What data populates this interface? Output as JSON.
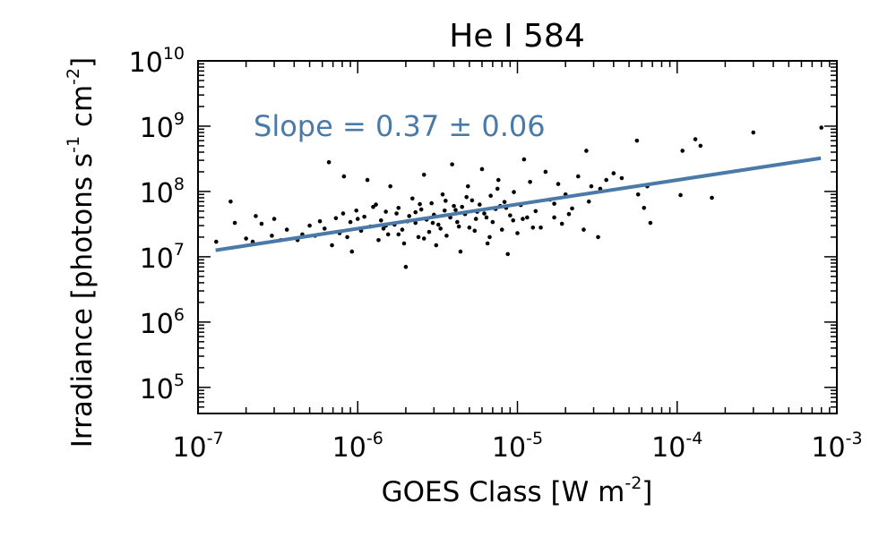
{
  "chart_data": {
    "type": "scatter",
    "title": "He I 584",
    "xlabel": {
      "text": "GOES Class [W m",
      "sup": "-2",
      "tail": "]"
    },
    "ylabel": {
      "parts": [
        {
          "t": "Irradiance [photons s",
          "sup": false
        },
        {
          "t": "-1",
          "sup": true
        },
        {
          "t": " cm",
          "sup": false
        },
        {
          "t": "-2",
          "sup": true
        },
        {
          "t": "]",
          "sup": false
        }
      ]
    },
    "x_scale": "log",
    "y_scale": "log",
    "xlim_exp": [
      -7,
      -3
    ],
    "ylim_exp": [
      4.6,
      10
    ],
    "x_ticks": [
      {
        "base": "10",
        "exp": "-7",
        "value": 1e-07
      },
      {
        "base": "10",
        "exp": "-6",
        "value": 1e-06
      },
      {
        "base": "10",
        "exp": "-5",
        "value": 1e-05
      },
      {
        "base": "10",
        "exp": "-4",
        "value": 0.0001
      },
      {
        "base": "10",
        "exp": "-3",
        "value": 0.001
      }
    ],
    "y_ticks": [
      {
        "base": "10",
        "exp": "5",
        "value": 100000.0
      },
      {
        "base": "10",
        "exp": "6",
        "value": 1000000.0
      },
      {
        "base": "10",
        "exp": "7",
        "value": 10000000.0
      },
      {
        "base": "10",
        "exp": "8",
        "value": 100000000.0
      },
      {
        "base": "10",
        "exp": "9",
        "value": 1000000000.0
      },
      {
        "base": "10",
        "exp": "10",
        "value": 10000000000.0
      }
    ],
    "annotation": "Slope = 0.37 ± 0.06",
    "fit_line": {
      "slope": 0.37,
      "x_exp": [
        -6.89,
        -3.1
      ],
      "y_exp": [
        7.1,
        8.51
      ],
      "color": "#4a7aa8"
    },
    "point_color": "#000000",
    "points": [
      [
        1.3e-07,
        17000000.0
      ],
      [
        1.6e-07,
        70000000.0
      ],
      [
        1.7e-07,
        33000000.0
      ],
      [
        2e-07,
        19000000.0
      ],
      [
        2.2e-07,
        17000000.0
      ],
      [
        2.3e-07,
        42000000.0
      ],
      [
        2.5e-07,
        32000000.0
      ],
      [
        2.9e-07,
        21000000.0
      ],
      [
        3e-07,
        38000000.0
      ],
      [
        3.3e-07,
        18000000.0
      ],
      [
        3.6e-07,
        26000000.0
      ],
      [
        4.2e-07,
        18000000.0
      ],
      [
        4.5e-07,
        22000000.0
      ],
      [
        5e-07,
        30000000.0
      ],
      [
        5.4e-07,
        21000000.0
      ],
      [
        5.8e-07,
        35000000.0
      ],
      [
        6.2e-07,
        27000000.0
      ],
      [
        6.6e-07,
        280000000.0
      ],
      [
        6.9e-07,
        15000000.0
      ],
      [
        7.3e-07,
        39000000.0
      ],
      [
        7.7e-07,
        23000000.0
      ],
      [
        8.1e-07,
        46000000.0
      ],
      [
        8.2e-07,
        170000000.0
      ],
      [
        8.6e-07,
        20000000.0
      ],
      [
        9e-07,
        34000000.0
      ],
      [
        9.2e-07,
        12000000.0
      ],
      [
        9.8e-07,
        51000000.0
      ],
      [
        1.05e-06,
        25000000.0
      ],
      [
        1.1e-06,
        41000000.0
      ],
      [
        1.15e-06,
        150000000.0
      ],
      [
        1.2e-06,
        29000000.0
      ],
      [
        1.3e-06,
        63000000.0
      ],
      [
        1.35e-06,
        18000000.0
      ],
      [
        1.4e-06,
        36000000.0
      ],
      [
        1.5e-06,
        49000000.0
      ],
      [
        1.55e-06,
        22000000.0
      ],
      [
        1.6e-06,
        120000000.0
      ],
      [
        1.7e-06,
        31000000.0
      ],
      [
        1.8e-06,
        56000000.0
      ],
      [
        1.9e-06,
        26000000.0
      ],
      [
        1.95e-06,
        16000000.0
      ],
      [
        2e-06,
        7000000.0
      ],
      [
        2.1e-06,
        42000000.0
      ],
      [
        2.2e-06,
        78000000.0
      ],
      [
        2.3e-06,
        33000000.0
      ],
      [
        2.4e-06,
        20000000.0
      ],
      [
        2.5e-06,
        53000000.0
      ],
      [
        2.6e-06,
        180000000.0
      ],
      [
        2.7e-06,
        37000000.0
      ],
      [
        2.8e-06,
        24000000.0
      ],
      [
        2.9e-06,
        66000000.0
      ],
      [
        3e-06,
        44000000.0
      ],
      [
        3.1e-06,
        15000000.0
      ],
      [
        3.2e-06,
        31000000.0
      ],
      [
        3.4e-06,
        90000000.0
      ],
      [
        3.5e-06,
        51000000.0
      ],
      [
        3.6e-06,
        21000000.0
      ],
      [
        3.8e-06,
        40000000.0
      ],
      [
        3.9e-06,
        260000000.0
      ],
      [
        4e-06,
        60000000.0
      ],
      [
        4.2e-06,
        34000000.0
      ],
      [
        4.4e-06,
        12000000.0
      ],
      [
        4.5e-06,
        58000000.0
      ],
      [
        4.7e-06,
        45000000.0
      ],
      [
        4.9e-06,
        120000000.0
      ],
      [
        5e-06,
        28000000.0
      ],
      [
        5.2e-06,
        73000000.0
      ],
      [
        5.5e-06,
        38000000.0
      ],
      [
        5.8e-06,
        63000000.0
      ],
      [
        6e-06,
        220000000.0
      ],
      [
        6.2e-06,
        46000000.0
      ],
      [
        6.5e-06,
        16000000.0
      ],
      [
        6.8e-06,
        86000000.0
      ],
      [
        7e-06,
        34000000.0
      ],
      [
        7.3e-06,
        54000000.0
      ],
      [
        7.6e-06,
        150000000.0
      ],
      [
        8e-06,
        26000000.0
      ],
      [
        8.3e-06,
        69000000.0
      ],
      [
        8.7e-06,
        11000000.0
      ],
      [
        9e-06,
        43000000.0
      ],
      [
        9.5e-06,
        98000000.0
      ],
      [
        1e-05,
        23000000.0
      ],
      [
        1.05e-05,
        62000000.0
      ],
      [
        1.1e-05,
        310000000.0
      ],
      [
        1.15e-05,
        40000000.0
      ],
      [
        1.2e-05,
        140000000.0
      ],
      [
        1.3e-05,
        50000000.0
      ],
      [
        1.4e-05,
        28000000.0
      ],
      [
        1.5e-05,
        200000000.0
      ],
      [
        1.6e-05,
        75000000.0
      ],
      [
        1.7e-05,
        40000000.0
      ],
      [
        1.8e-05,
        130000000.0
      ],
      [
        1.9e-05,
        32000000.0
      ],
      [
        2e-05,
        90000000.0
      ],
      [
        2.2e-05,
        55000000.0
      ],
      [
        2.4e-05,
        170000000.0
      ],
      [
        2.6e-05,
        26000000.0
      ],
      [
        2.7e-05,
        420000000.0
      ],
      [
        2.9e-05,
        120000000.0
      ],
      [
        3.2e-05,
        20000000.0
      ],
      [
        3.6e-05,
        150000000.0
      ],
      [
        4e-05,
        190000000.0
      ],
      [
        4.5e-05,
        160000000.0
      ],
      [
        5.6e-05,
        600000000.0
      ],
      [
        5.7e-05,
        90000000.0
      ],
      [
        6.2e-05,
        56000000.0
      ],
      [
        6.5e-05,
        120000000.0
      ],
      [
        6.8e-05,
        33000000.0
      ],
      [
        0.000105,
        88000000.0
      ],
      [
        0.000108,
        420000000.0
      ],
      [
        0.00013,
        630000000.0
      ],
      [
        0.00014,
        500000000.0
      ],
      [
        0.000165,
        80000000.0
      ],
      [
        0.0003,
        800000000.0
      ],
      [
        0.0008,
        950000000.0
      ],
      [
        1.5e-06,
        30000000.0
      ],
      [
        1.8e-06,
        22000000.0
      ],
      [
        2.3e-06,
        48000000.0
      ],
      [
        2.6e-06,
        19000000.0
      ],
      [
        3.3e-06,
        27000000.0
      ],
      [
        4.1e-06,
        52000000.0
      ],
      [
        5.4e-06,
        25000000.0
      ],
      [
        6.4e-06,
        40000000.0
      ],
      [
        7.8e-06,
        60000000.0
      ],
      [
        9.4e-06,
        36000000.0
      ],
      [
        1.25e-05,
        28000000.0
      ],
      [
        1.7e-05,
        65000000.0
      ],
      [
        2.1e-05,
        45000000.0
      ],
      [
        2.8e-05,
        70000000.0
      ],
      [
        3.3e-05,
        110000000.0
      ],
      [
        1e-06,
        38000000.0
      ],
      [
        1.25e-06,
        58000000.0
      ],
      [
        1.45e-06,
        27000000.0
      ],
      [
        1.75e-06,
        46000000.0
      ],
      [
        2.05e-06,
        35000000.0
      ],
      [
        2.45e-06,
        64000000.0
      ],
      [
        2.95e-06,
        33000000.0
      ],
      [
        3.55e-06,
        72000000.0
      ],
      [
        4.3e-06,
        29000000.0
      ],
      [
        4.8e-06,
        82000000.0
      ],
      [
        5.6e-06,
        49000000.0
      ],
      [
        6.7e-06,
        20000000.0
      ],
      [
        7.5e-06,
        110000000.0
      ],
      [
        8.5e-06,
        56000000.0
      ],
      [
        1.08e-05,
        38000000.0
      ]
    ]
  }
}
